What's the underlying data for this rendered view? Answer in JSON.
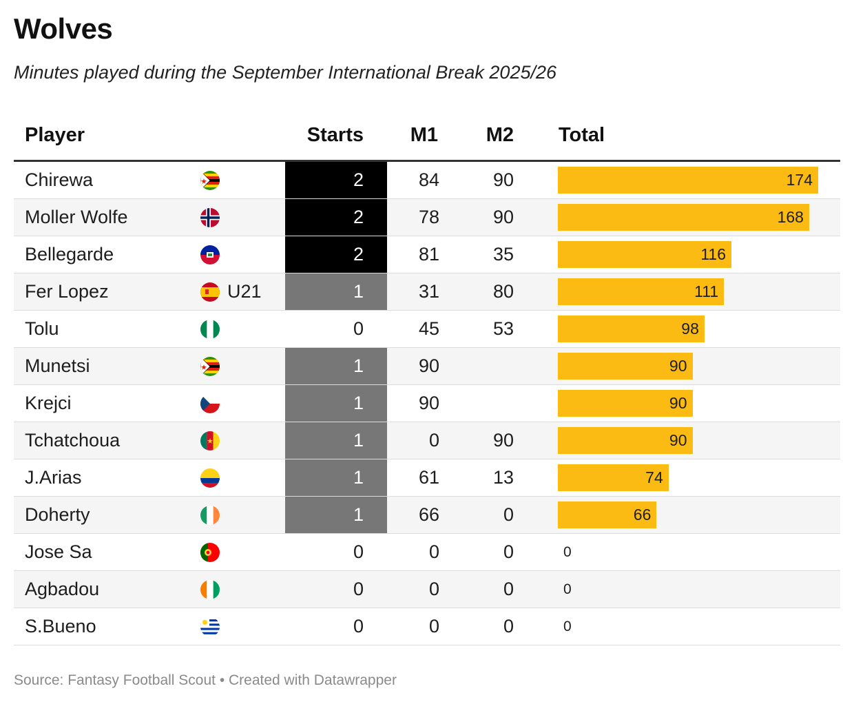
{
  "title": "Wolves",
  "subtitle": "Minutes played during the September International Break 2025/26",
  "footer": "Source: Fantasy Football Scout • Created with Datawrapper",
  "colors": {
    "bar": "#fbbb12",
    "starts_2": "#000000",
    "starts_1": "#777777",
    "starts_0": "#ffffff"
  },
  "chart_data": {
    "type": "table",
    "columns": [
      "Player",
      "Starts",
      "M1",
      "M2",
      "Total"
    ],
    "total_max": 174,
    "rows": [
      {
        "player": "Chirewa",
        "flag": "zimbabwe-flag-icon",
        "note": "",
        "starts": "2",
        "m1": "84",
        "m2": "90",
        "total": 174
      },
      {
        "player": "Moller Wolfe",
        "flag": "norway-flag-icon",
        "note": "",
        "starts": "2",
        "m1": "78",
        "m2": "90",
        "total": 168
      },
      {
        "player": "Bellegarde",
        "flag": "haiti-flag-icon",
        "note": "",
        "starts": "2",
        "m1": "81",
        "m2": "35",
        "total": 116
      },
      {
        "player": "Fer Lopez",
        "flag": "spain-flag-icon",
        "note": "U21",
        "starts": "1",
        "m1": "31",
        "m2": "80",
        "total": 111
      },
      {
        "player": "Tolu",
        "flag": "nigeria-flag-icon",
        "note": "",
        "starts": "0",
        "m1": "45",
        "m2": "53",
        "total": 98
      },
      {
        "player": "Munetsi",
        "flag": "zimbabwe-flag-icon",
        "note": "",
        "starts": "1",
        "m1": "90",
        "m2": "",
        "total": 90
      },
      {
        "player": "Krejci",
        "flag": "czech-flag-icon",
        "note": "",
        "starts": "1",
        "m1": "90",
        "m2": "",
        "total": 90
      },
      {
        "player": "Tchatchoua",
        "flag": "cameroon-flag-icon",
        "note": "",
        "starts": "1",
        "m1": "0",
        "m2": "90",
        "total": 90
      },
      {
        "player": "J.Arias",
        "flag": "colombia-flag-icon",
        "note": "",
        "starts": "1",
        "m1": "61",
        "m2": "13",
        "total": 74
      },
      {
        "player": "Doherty",
        "flag": "ireland-flag-icon",
        "note": "",
        "starts": "1",
        "m1": "66",
        "m2": "0",
        "total": 66
      },
      {
        "player": "Jose Sa",
        "flag": "portugal-flag-icon",
        "note": "",
        "starts": "0",
        "m1": "0",
        "m2": "0",
        "total": 0
      },
      {
        "player": "Agbadou",
        "flag": "ivory-coast-flag-icon",
        "note": "",
        "starts": "0",
        "m1": "0",
        "m2": "0",
        "total": 0
      },
      {
        "player": "S.Bueno",
        "flag": "uruguay-flag-icon",
        "note": "",
        "starts": "0",
        "m1": "0",
        "m2": "0",
        "total": 0
      }
    ]
  }
}
